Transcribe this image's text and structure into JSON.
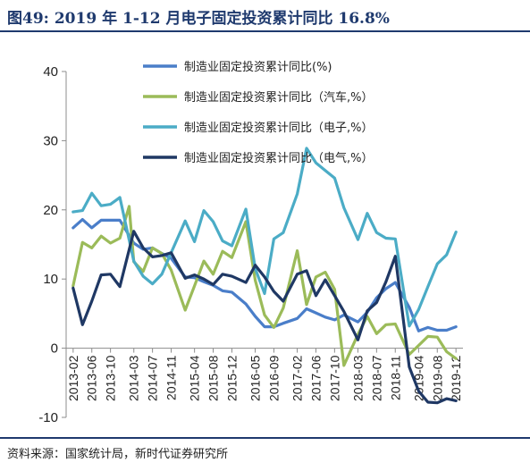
{
  "figure": {
    "title": "图49:   2019 年 1-12 月电子固定投资累计同比 16.8%",
    "source": "资料来源：国家统计局，新时代证券研究所"
  },
  "chart_data": {
    "type": "line",
    "ylim": [
      -10,
      40
    ],
    "yticks": [
      -10,
      0,
      10,
      20,
      30,
      40
    ],
    "xlim": [
      "2013-02",
      "2019-12"
    ],
    "xticks": [
      "2013-02",
      "2013-06",
      "2013-10",
      "2014-03",
      "2014-07",
      "2014-11",
      "2015-04",
      "2015-08",
      "2015-12",
      "2016-05",
      "2016-09",
      "2017-02",
      "2017-06",
      "2017-10",
      "2018-03",
      "2018-07",
      "2018-11",
      "2019-04",
      "2019-08",
      "2019-12"
    ],
    "grid": false,
    "legend_position": "top-right",
    "series": [
      {
        "name": "制造业固定投资累计同比(%)",
        "color": "#4a7ec9",
        "x": [
          "2013-02",
          "2013-04",
          "2013-06",
          "2013-08",
          "2013-10",
          "2013-12",
          "2014-03",
          "2014-05",
          "2014-07",
          "2014-09",
          "2014-11",
          "2015-02",
          "2015-04",
          "2015-06",
          "2015-08",
          "2015-10",
          "2015-12",
          "2016-03",
          "2016-05",
          "2016-07",
          "2016-09",
          "2016-11",
          "2017-02",
          "2017-04",
          "2017-06",
          "2017-08",
          "2017-10",
          "2017-12",
          "2018-03",
          "2018-05",
          "2018-07",
          "2018-09",
          "2018-11",
          "2019-02",
          "2019-04",
          "2019-06",
          "2019-08",
          "2019-10",
          "2019-12"
        ],
        "y": [
          17.4,
          18.6,
          17.4,
          18.5,
          18.5,
          18.5,
          15.2,
          14.3,
          14.5,
          13.7,
          13.0,
          10.3,
          10.2,
          9.6,
          9.1,
          8.3,
          8.1,
          6.4,
          4.6,
          3.1,
          3.1,
          3.6,
          4.3,
          5.7,
          5.1,
          4.5,
          4.1,
          4.8,
          3.8,
          5.2,
          7.3,
          8.6,
          9.5,
          5.9,
          2.5,
          3.0,
          2.6,
          2.6,
          3.1
        ]
      },
      {
        "name": "制造业固定投资累计同比（汽车,%）",
        "color": "#9bbb59",
        "x": [
          "2013-02",
          "2013-04",
          "2013-06",
          "2013-08",
          "2013-10",
          "2013-12",
          "2014-02",
          "2014-03",
          "2014-05",
          "2014-07",
          "2014-09",
          "2014-11",
          "2015-02",
          "2015-04",
          "2015-06",
          "2015-08",
          "2015-10",
          "2015-12",
          "2016-03",
          "2016-05",
          "2016-07",
          "2016-09",
          "2016-11",
          "2017-02",
          "2017-04",
          "2017-06",
          "2017-08",
          "2017-10",
          "2017-12",
          "2018-03",
          "2018-05",
          "2018-07",
          "2018-09",
          "2018-11",
          "2019-02",
          "2019-04",
          "2019-06",
          "2019-08",
          "2019-10",
          "2019-12"
        ],
        "y": [
          9.0,
          15.3,
          14.5,
          16.2,
          15.2,
          15.9,
          20.5,
          12.5,
          11.1,
          14.5,
          13.7,
          11.3,
          5.5,
          9.0,
          12.6,
          10.7,
          14.0,
          13.1,
          18.3,
          9.8,
          4.8,
          3.0,
          5.8,
          14.1,
          6.3,
          10.3,
          11.0,
          8.5,
          -2.5,
          2.0,
          4.6,
          2.1,
          3.4,
          3.5,
          -0.9,
          0.4,
          1.7,
          1.6,
          -0.5,
          -1.5
        ]
      },
      {
        "name": "制造业固定投资累计同比（电子,%）",
        "color": "#4bacc6",
        "x": [
          "2013-02",
          "2013-04",
          "2013-06",
          "2013-08",
          "2013-10",
          "2013-12",
          "2014-03",
          "2014-05",
          "2014-07",
          "2014-09",
          "2014-11",
          "2015-02",
          "2015-04",
          "2015-06",
          "2015-08",
          "2015-10",
          "2015-12",
          "2016-03",
          "2016-05",
          "2016-07",
          "2016-09",
          "2016-11",
          "2017-02",
          "2017-04",
          "2017-06",
          "2017-08",
          "2017-10",
          "2017-12",
          "2018-03",
          "2018-05",
          "2018-07",
          "2018-09",
          "2018-11",
          "2019-02",
          "2019-04",
          "2019-06",
          "2019-08",
          "2019-10",
          "2019-12"
        ],
        "y": [
          19.7,
          19.9,
          22.4,
          20.6,
          20.8,
          21.8,
          12.6,
          10.4,
          9.3,
          10.7,
          13.8,
          18.4,
          15.4,
          19.9,
          18.3,
          15.5,
          14.8,
          20.1,
          11.5,
          7.9,
          15.8,
          16.7,
          22.3,
          28.9,
          26.8,
          25.7,
          24.6,
          20.3,
          15.7,
          19.5,
          16.7,
          15.9,
          15.8,
          3.2,
          5.6,
          8.9,
          12.2,
          13.5,
          16.8
        ]
      },
      {
        "name": "制造业固定投资累计同比（电气,%）",
        "color": "#1f3864",
        "x": [
          "2013-02",
          "2013-04",
          "2013-06",
          "2013-08",
          "2013-10",
          "2013-12",
          "2014-03",
          "2014-05",
          "2014-07",
          "2014-09",
          "2014-11",
          "2015-02",
          "2015-04",
          "2015-06",
          "2015-08",
          "2015-10",
          "2015-12",
          "2016-03",
          "2016-05",
          "2016-07",
          "2016-09",
          "2016-11",
          "2017-02",
          "2017-04",
          "2017-06",
          "2017-08",
          "2017-10",
          "2017-12",
          "2018-03",
          "2018-05",
          "2018-07",
          "2018-09",
          "2018-11",
          "2019-02",
          "2019-04",
          "2019-06",
          "2019-08",
          "2019-10",
          "2019-12"
        ],
        "y": [
          8.7,
          3.4,
          6.8,
          10.6,
          10.7,
          8.9,
          16.9,
          14.5,
          13.2,
          13.4,
          13.8,
          10.1,
          10.6,
          10.0,
          9.2,
          10.7,
          10.4,
          9.5,
          12.0,
          10.3,
          8.2,
          6.8,
          10.7,
          11.2,
          7.6,
          9.9,
          7.6,
          5.3,
          1.2,
          5.4,
          6.6,
          9.6,
          13.3,
          -2.7,
          -6.2,
          -7.8,
          -7.9,
          -7.3,
          -7.6
        ]
      }
    ]
  }
}
